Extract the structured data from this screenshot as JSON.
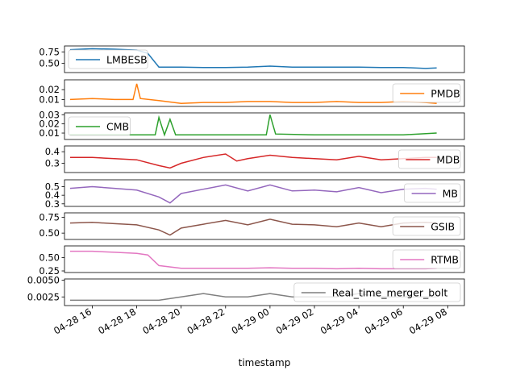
{
  "chart_data": {
    "type": "line",
    "xlabel": "timestamp",
    "x_range": [
      "2023-04-28 14:45",
      "2023-04-29 08:45"
    ],
    "x_ticks": [
      {
        "t": "2023-04-28 16:00",
        "label": "04-28 16"
      },
      {
        "t": "2023-04-28 18:00",
        "label": "04-28 18"
      },
      {
        "t": "2023-04-28 20:00",
        "label": "04-28 20"
      },
      {
        "t": "2023-04-28 22:00",
        "label": "04-28 22"
      },
      {
        "t": "2023-04-29 00:00",
        "label": "04-29 00"
      },
      {
        "t": "2023-04-29 02:00",
        "label": "04-29 02"
      },
      {
        "t": "2023-04-29 04:00",
        "label": "04-29 04"
      },
      {
        "t": "2023-04-29 06:00",
        "label": "04-29 06"
      },
      {
        "t": "2023-04-29 08:00",
        "label": "04-29 08"
      }
    ],
    "series": [
      {
        "name": "LMBESB",
        "color": "#1f77b4",
        "ylim": [
          0.3,
          0.88
        ],
        "yticks": [
          0.5,
          0.75
        ],
        "ytick_labels": [
          "0.50",
          "0.75"
        ],
        "legend": "left",
        "points": [
          [
            "2023-04-28 15:00",
            0.8
          ],
          [
            "2023-04-28 16:00",
            0.82
          ],
          [
            "2023-04-28 17:00",
            0.81
          ],
          [
            "2023-04-28 18:00",
            0.79
          ],
          [
            "2023-04-28 18:30",
            0.72
          ],
          [
            "2023-04-28 19:00",
            0.42
          ],
          [
            "2023-04-28 20:00",
            0.42
          ],
          [
            "2023-04-28 21:00",
            0.41
          ],
          [
            "2023-04-28 22:00",
            0.41
          ],
          [
            "2023-04-28 23:00",
            0.42
          ],
          [
            "2023-04-29 00:00",
            0.44
          ],
          [
            "2023-04-29 01:00",
            0.42
          ],
          [
            "2023-04-29 02:00",
            0.42
          ],
          [
            "2023-04-29 03:00",
            0.42
          ],
          [
            "2023-04-29 04:00",
            0.42
          ],
          [
            "2023-04-29 05:00",
            0.41
          ],
          [
            "2023-04-29 06:00",
            0.41
          ],
          [
            "2023-04-29 07:00",
            0.39
          ],
          [
            "2023-04-29 07:30",
            0.4
          ]
        ]
      },
      {
        "name": "PMDB",
        "color": "#ff7f0e",
        "ylim": [
          0.003,
          0.03
        ],
        "yticks": [
          0.01,
          0.02
        ],
        "ytick_labels": [
          "0.01",
          "0.02"
        ],
        "legend": "right",
        "points": [
          [
            "2023-04-28 15:00",
            0.01
          ],
          [
            "2023-04-28 16:00",
            0.011
          ],
          [
            "2023-04-28 17:00",
            0.01
          ],
          [
            "2023-04-28 17:50",
            0.01
          ],
          [
            "2023-04-28 18:00",
            0.026
          ],
          [
            "2023-04-28 18:10",
            0.011
          ],
          [
            "2023-04-28 19:00",
            0.009
          ],
          [
            "2023-04-28 20:00",
            0.006
          ],
          [
            "2023-04-28 21:00",
            0.007
          ],
          [
            "2023-04-28 22:00",
            0.007
          ],
          [
            "2023-04-28 23:00",
            0.008
          ],
          [
            "2023-04-29 00:00",
            0.008
          ],
          [
            "2023-04-29 01:00",
            0.007
          ],
          [
            "2023-04-29 02:00",
            0.007
          ],
          [
            "2023-04-29 03:00",
            0.008
          ],
          [
            "2023-04-29 04:00",
            0.007
          ],
          [
            "2023-04-29 05:00",
            0.007
          ],
          [
            "2023-04-29 06:00",
            0.008
          ],
          [
            "2023-04-29 07:00",
            0.007
          ],
          [
            "2023-04-29 07:30",
            0.006
          ]
        ]
      },
      {
        "name": "CMB",
        "color": "#2ca02c",
        "ylim": [
          0.003,
          0.032
        ],
        "yticks": [
          0.01,
          0.02,
          0.03
        ],
        "ytick_labels": [
          "0.01",
          "0.02",
          "0.03"
        ],
        "legend": "left",
        "points": [
          [
            "2023-04-28 15:00",
            0.008
          ],
          [
            "2023-04-28 16:00",
            0.008
          ],
          [
            "2023-04-28 17:00",
            0.008
          ],
          [
            "2023-04-28 18:00",
            0.008
          ],
          [
            "2023-04-28 18:50",
            0.008
          ],
          [
            "2023-04-28 19:00",
            0.027
          ],
          [
            "2023-04-28 19:15",
            0.008
          ],
          [
            "2023-04-28 19:30",
            0.025
          ],
          [
            "2023-04-28 19:45",
            0.008
          ],
          [
            "2023-04-28 21:00",
            0.008
          ],
          [
            "2023-04-28 22:00",
            0.008
          ],
          [
            "2023-04-28 23:50",
            0.008
          ],
          [
            "2023-04-29 00:00",
            0.03
          ],
          [
            "2023-04-29 00:15",
            0.009
          ],
          [
            "2023-04-29 02:00",
            0.008
          ],
          [
            "2023-04-29 04:00",
            0.008
          ],
          [
            "2023-04-29 06:00",
            0.008
          ],
          [
            "2023-04-29 07:30",
            0.01
          ]
        ]
      },
      {
        "name": "MDB",
        "color": "#d62728",
        "ylim": [
          0.22,
          0.45
        ],
        "yticks": [
          0.3,
          0.4
        ],
        "ytick_labels": [
          "0.3",
          "0.4"
        ],
        "legend": "right",
        "points": [
          [
            "2023-04-28 15:00",
            0.35
          ],
          [
            "2023-04-28 16:00",
            0.35
          ],
          [
            "2023-04-28 17:00",
            0.34
          ],
          [
            "2023-04-28 18:00",
            0.33
          ],
          [
            "2023-04-28 19:00",
            0.28
          ],
          [
            "2023-04-28 19:30",
            0.26
          ],
          [
            "2023-04-28 20:00",
            0.3
          ],
          [
            "2023-04-28 21:00",
            0.35
          ],
          [
            "2023-04-28 22:00",
            0.38
          ],
          [
            "2023-04-28 22:30",
            0.32
          ],
          [
            "2023-04-28 23:00",
            0.34
          ],
          [
            "2023-04-29 00:00",
            0.37
          ],
          [
            "2023-04-29 01:00",
            0.35
          ],
          [
            "2023-04-29 02:00",
            0.34
          ],
          [
            "2023-04-29 03:00",
            0.33
          ],
          [
            "2023-04-29 04:00",
            0.36
          ],
          [
            "2023-04-29 05:00",
            0.33
          ],
          [
            "2023-04-29 06:00",
            0.34
          ],
          [
            "2023-04-29 07:00",
            0.35
          ],
          [
            "2023-04-29 07:30",
            0.35
          ]
        ]
      },
      {
        "name": "MB",
        "color": "#9467bd",
        "ylim": [
          0.27,
          0.58
        ],
        "yticks": [
          0.3,
          0.4,
          0.5
        ],
        "ytick_labels": [
          "0.3",
          "0.4",
          "0.5"
        ],
        "legend": "right",
        "points": [
          [
            "2023-04-28 15:00",
            0.48
          ],
          [
            "2023-04-28 16:00",
            0.5
          ],
          [
            "2023-04-28 17:00",
            0.48
          ],
          [
            "2023-04-28 18:00",
            0.46
          ],
          [
            "2023-04-28 19:00",
            0.38
          ],
          [
            "2023-04-28 19:30",
            0.31
          ],
          [
            "2023-04-28 20:00",
            0.42
          ],
          [
            "2023-04-28 21:00",
            0.47
          ],
          [
            "2023-04-28 22:00",
            0.52
          ],
          [
            "2023-04-28 23:00",
            0.45
          ],
          [
            "2023-04-29 00:00",
            0.52
          ],
          [
            "2023-04-29 01:00",
            0.45
          ],
          [
            "2023-04-29 02:00",
            0.46
          ],
          [
            "2023-04-29 03:00",
            0.44
          ],
          [
            "2023-04-29 04:00",
            0.49
          ],
          [
            "2023-04-29 05:00",
            0.43
          ],
          [
            "2023-04-29 06:00",
            0.47
          ],
          [
            "2023-04-29 07:00",
            0.48
          ],
          [
            "2023-04-29 07:30",
            0.47
          ]
        ]
      },
      {
        "name": "GSIB",
        "color": "#8c564b",
        "ylim": [
          0.4,
          0.82
        ],
        "yticks": [
          0.5,
          0.75
        ],
        "ytick_labels": [
          "0.50",
          "0.75"
        ],
        "legend": "right",
        "points": [
          [
            "2023-04-28 15:00",
            0.66
          ],
          [
            "2023-04-28 16:00",
            0.67
          ],
          [
            "2023-04-28 17:00",
            0.65
          ],
          [
            "2023-04-28 18:00",
            0.63
          ],
          [
            "2023-04-28 19:00",
            0.55
          ],
          [
            "2023-04-28 19:30",
            0.47
          ],
          [
            "2023-04-28 20:00",
            0.58
          ],
          [
            "2023-04-28 21:00",
            0.64
          ],
          [
            "2023-04-28 22:00",
            0.7
          ],
          [
            "2023-04-28 23:00",
            0.63
          ],
          [
            "2023-04-29 00:00",
            0.72
          ],
          [
            "2023-04-29 01:00",
            0.64
          ],
          [
            "2023-04-29 02:00",
            0.63
          ],
          [
            "2023-04-29 03:00",
            0.6
          ],
          [
            "2023-04-29 04:00",
            0.66
          ],
          [
            "2023-04-29 05:00",
            0.6
          ],
          [
            "2023-04-29 06:00",
            0.66
          ],
          [
            "2023-04-29 07:00",
            0.67
          ],
          [
            "2023-04-29 07:30",
            0.66
          ]
        ]
      },
      {
        "name": "RTMB",
        "color": "#e377c2",
        "ylim": [
          0.22,
          0.72
        ],
        "yticks": [
          0.25,
          0.5
        ],
        "ytick_labels": [
          "0.25",
          "0.50"
        ],
        "legend": "right",
        "points": [
          [
            "2023-04-28 15:00",
            0.62
          ],
          [
            "2023-04-28 16:00",
            0.62
          ],
          [
            "2023-04-28 17:00",
            0.6
          ],
          [
            "2023-04-28 18:00",
            0.58
          ],
          [
            "2023-04-28 18:30",
            0.55
          ],
          [
            "2023-04-28 19:00",
            0.35
          ],
          [
            "2023-04-28 20:00",
            0.3
          ],
          [
            "2023-04-28 21:00",
            0.3
          ],
          [
            "2023-04-28 22:00",
            0.3
          ],
          [
            "2023-04-28 23:00",
            0.3
          ],
          [
            "2023-04-29 00:00",
            0.31
          ],
          [
            "2023-04-29 01:00",
            0.3
          ],
          [
            "2023-04-29 02:00",
            0.3
          ],
          [
            "2023-04-29 03:00",
            0.29
          ],
          [
            "2023-04-29 04:00",
            0.3
          ],
          [
            "2023-04-29 05:00",
            0.29
          ],
          [
            "2023-04-29 06:00",
            0.29
          ],
          [
            "2023-04-29 07:00",
            0.29
          ],
          [
            "2023-04-29 07:30",
            0.3
          ]
        ]
      },
      {
        "name": "Real_time_merger_bolt",
        "color": "#7f7f7f",
        "ylim": [
          0.0012,
          0.0052
        ],
        "yticks": [
          0.0025,
          0.005
        ],
        "ytick_labels": [
          "0.0025",
          "0.0050"
        ],
        "legend": "right",
        "points": [
          [
            "2023-04-28 15:00",
            0.002
          ],
          [
            "2023-04-28 16:00",
            0.002
          ],
          [
            "2023-04-28 17:00",
            0.002
          ],
          [
            "2023-04-28 18:00",
            0.002
          ],
          [
            "2023-04-28 19:00",
            0.002
          ],
          [
            "2023-04-28 20:00",
            0.0025
          ],
          [
            "2023-04-28 21:00",
            0.003
          ],
          [
            "2023-04-28 22:00",
            0.0025
          ],
          [
            "2023-04-28 23:00",
            0.0025
          ],
          [
            "2023-04-29 00:00",
            0.003
          ],
          [
            "2023-04-29 01:00",
            0.0025
          ],
          [
            "2023-04-29 02:00",
            0.0025
          ],
          [
            "2023-04-29 03:00",
            0.0025
          ],
          [
            "2023-04-29 04:00",
            0.003
          ],
          [
            "2023-04-29 05:00",
            0.0025
          ],
          [
            "2023-04-29 06:00",
            0.0025
          ],
          [
            "2023-04-29 07:00",
            0.0025
          ],
          [
            "2023-04-29 07:30",
            0.0025
          ]
        ]
      }
    ]
  }
}
